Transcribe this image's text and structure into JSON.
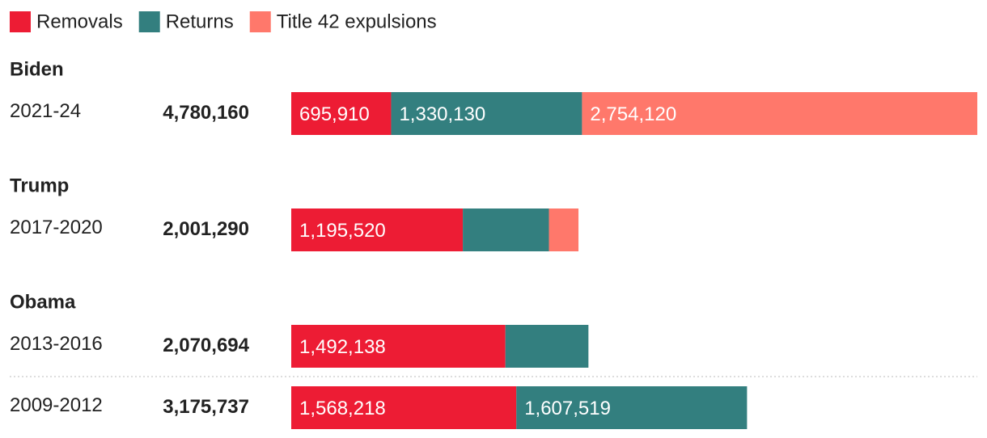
{
  "chart_data": {
    "type": "bar",
    "orientation": "horizontal",
    "stacked": true,
    "categories": [
      "2021-24",
      "2017-2020",
      "2013-2016",
      "2009-2012"
    ],
    "group_labels": [
      "Biden",
      "Trump",
      "Obama",
      null
    ],
    "total_labels": [
      "4,780,160",
      "2,001,290",
      "2,070,694",
      "3,175,737"
    ],
    "series": [
      {
        "name": "Removals",
        "color": "#ed1c34",
        "values": [
          695910,
          1195520,
          1492138,
          1568218
        ],
        "value_labels": [
          "695,910",
          "1,195,520",
          "1,492,138",
          "1,568,218"
        ]
      },
      {
        "name": "Returns",
        "color": "#337f7f",
        "values": [
          1330130,
          600000,
          578556,
          1607519
        ],
        "value_labels": [
          "1,330,130",
          null,
          null,
          "1,607,519"
        ]
      },
      {
        "name": "Title 42 expulsions",
        "color": "#ff786b",
        "values": [
          2754120,
          205770,
          null,
          null
        ],
        "value_labels": [
          "2,754,120",
          null,
          null,
          null
        ]
      }
    ]
  }
}
